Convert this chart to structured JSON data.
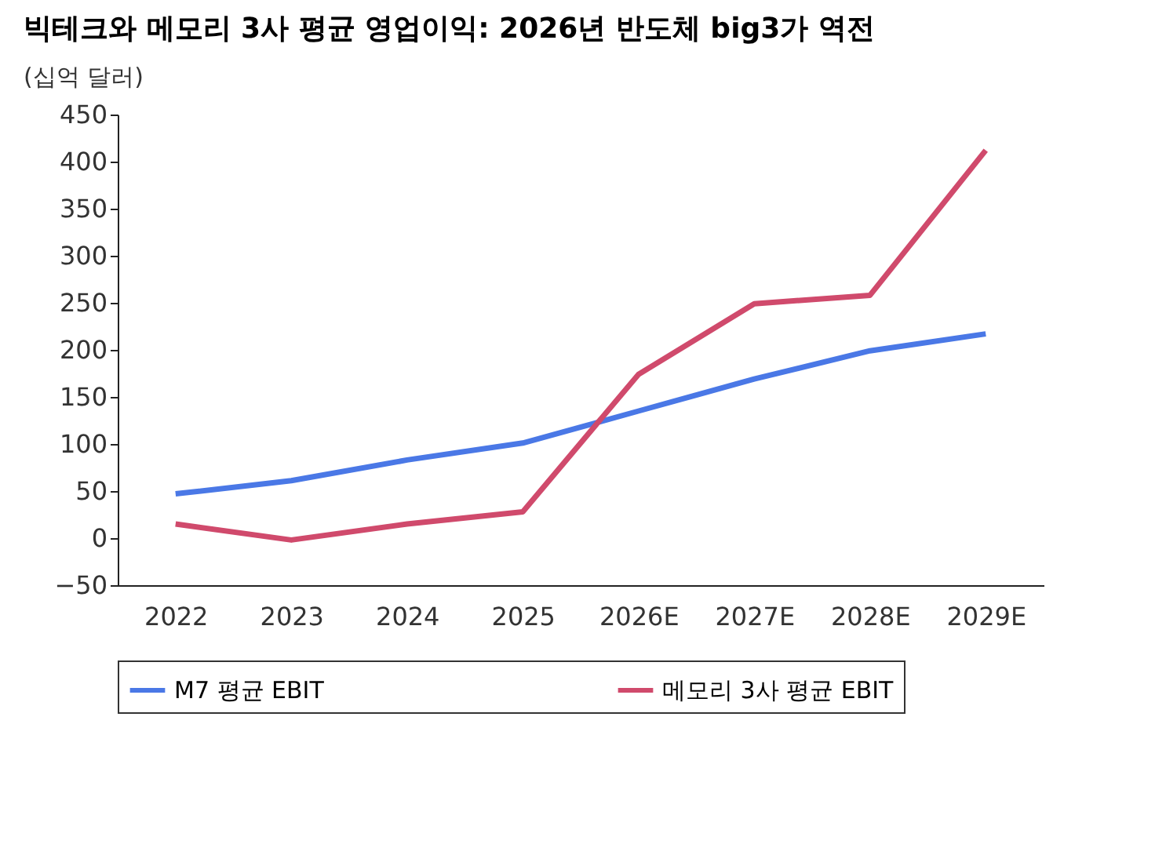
{
  "chart_data": {
    "type": "line",
    "title": "빅테크와 메모리 3사 평균 영업이익: 2026년 반도체 big3가 역전",
    "ylabel": "(십억 달러)",
    "categories": [
      "2022",
      "2023",
      "2024",
      "2025",
      "2026E",
      "2027E",
      "2028E",
      "2029E"
    ],
    "series": [
      {
        "name": "M7 평균 EBIT",
        "color": "#4a78e6",
        "values": [
          47,
          61,
          83,
          101,
          135,
          169,
          199,
          217
        ]
      },
      {
        "name": "메모리 3사 평균 EBIT",
        "color": "#d04a6c",
        "values": [
          15,
          -2,
          15,
          28,
          174,
          249,
          258,
          412
        ]
      }
    ],
    "ylim": [
      -50,
      450
    ],
    "yticks": [
      -50,
      0,
      50,
      100,
      150,
      200,
      250,
      300,
      350,
      400,
      450
    ],
    "grid": false,
    "legend": "bottom",
    "marker": "none",
    "line_style": "solid"
  }
}
